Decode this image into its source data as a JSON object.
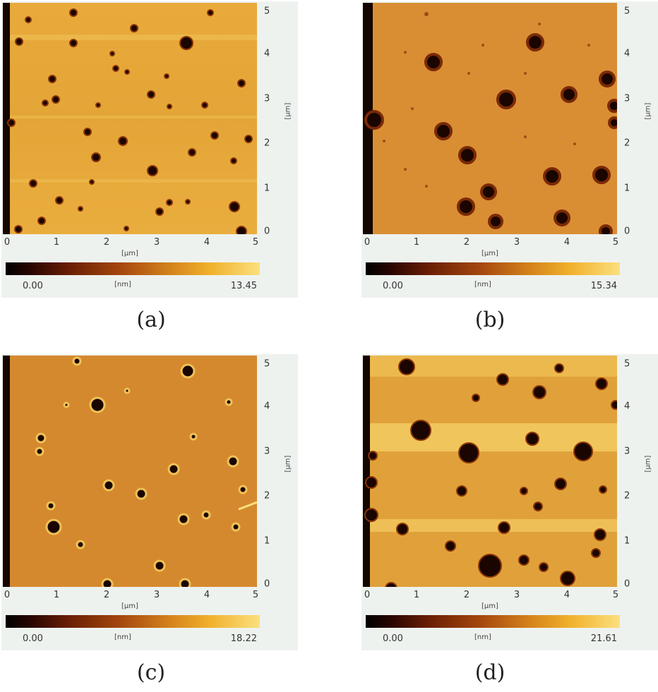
{
  "panels": [
    {
      "id": "a",
      "caption": "(a)",
      "x_unit": "[µm]",
      "y_unit": "[µm]",
      "x_ticks": [
        "0",
        "1",
        "2",
        "3",
        "4",
        "5"
      ],
      "y_ticks": [
        "5",
        "4",
        "3",
        "2",
        "1",
        "0"
      ],
      "colorbar_min": "0.00",
      "colorbar_unit": "[nm]",
      "colorbar_max": "13.45"
    },
    {
      "id": "b",
      "caption": "(b)",
      "x_unit": "[µm]",
      "y_unit": "[µm]",
      "x_ticks": [
        "0",
        "1",
        "2",
        "3",
        "4",
        "5"
      ],
      "y_ticks": [
        "5",
        "4",
        "3",
        "2",
        "1",
        "0"
      ],
      "colorbar_min": "0.00",
      "colorbar_unit": "[nm]",
      "colorbar_max": "15.34"
    },
    {
      "id": "c",
      "caption": "(c)",
      "x_unit": "[µm]",
      "y_unit": "[µm]",
      "x_ticks": [
        "0",
        "1",
        "2",
        "3",
        "4",
        "5"
      ],
      "y_ticks": [
        "5",
        "4",
        "3",
        "2",
        "1",
        "0"
      ],
      "colorbar_min": "0.00",
      "colorbar_unit": "[nm]",
      "colorbar_max": "18.22"
    },
    {
      "id": "d",
      "caption": "(d)",
      "x_unit": "[µm]",
      "y_unit": "[µm]",
      "x_ticks": [
        "0",
        "1",
        "2",
        "3",
        "4",
        "5"
      ],
      "y_ticks": [
        "5",
        "4",
        "3",
        "2",
        "1",
        "0"
      ],
      "colorbar_min": "0.00",
      "colorbar_unit": "[nm]",
      "colorbar_max": "21.61"
    }
  ],
  "colors": {
    "surface": "#e0a035",
    "surface_light": "#f2c75a",
    "pit": "#1a0500",
    "pit_rim": "#7a2a05",
    "edge": "#150500"
  }
}
